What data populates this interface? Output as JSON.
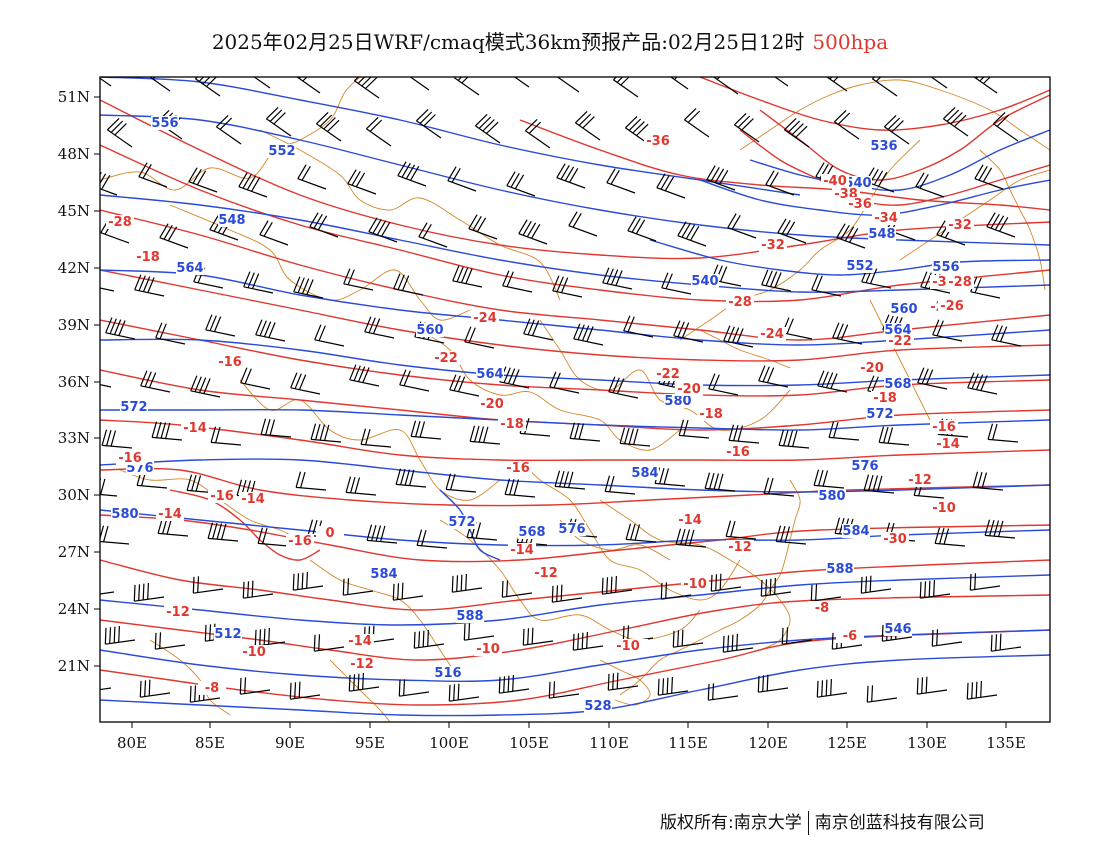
{
  "title": {
    "main": "2025年02月25日WRF/cmaq模式36km预报产品:02月25日12时",
    "level": "500hpa"
  },
  "axes": {
    "lon_labels": [
      "80E",
      "85E",
      "90E",
      "95E",
      "100E",
      "105E",
      "110E",
      "115E",
      "120E",
      "125E",
      "130E",
      "135E"
    ],
    "lat_labels": [
      "51N",
      "48N",
      "45N",
      "42N",
      "39N",
      "36N",
      "33N",
      "30N",
      "27N",
      "24N",
      "21N"
    ]
  },
  "colors": {
    "height": "#2a4bd7",
    "temperature": "#e0372f",
    "boundary": "#d4872a",
    "wind": "#000000"
  },
  "height_labels": [
    "556",
    "552",
    "548",
    "564",
    "560",
    "564",
    "572",
    "576",
    "580",
    "568",
    "572",
    "576",
    "584",
    "580",
    "584",
    "588",
    "512",
    "516",
    "528",
    "536",
    "540",
    "548",
    "552",
    "556",
    "560",
    "564",
    "568",
    "572",
    "576",
    "580",
    "584",
    "588",
    "546",
    "540"
  ],
  "temp_labels": [
    "-28",
    "-18",
    "-16",
    "-14",
    "-16",
    "-14",
    "-12",
    "-10",
    "-8",
    "-16",
    "-14",
    "-16",
    "-14",
    "-12",
    "-10",
    "-24",
    "-22",
    "-20",
    "-18",
    "-16",
    "-14",
    "-12",
    "-10",
    "-8",
    "-22",
    "-20",
    "-18",
    "-16",
    "-14",
    "-12",
    "-10",
    "-8",
    "-6",
    "-36",
    "-40",
    "-38",
    "-36",
    "-34",
    "-32",
    "-32",
    "-30",
    "-28",
    "-26",
    "-24",
    "-22",
    "-20",
    "-18",
    "-16",
    "-14",
    "-12",
    "-10",
    "-30",
    "-28",
    "-26",
    "0"
  ],
  "copyright": {
    "left": "版权所有:南京大学",
    "right": "南京创蓝科技有限公司"
  }
}
